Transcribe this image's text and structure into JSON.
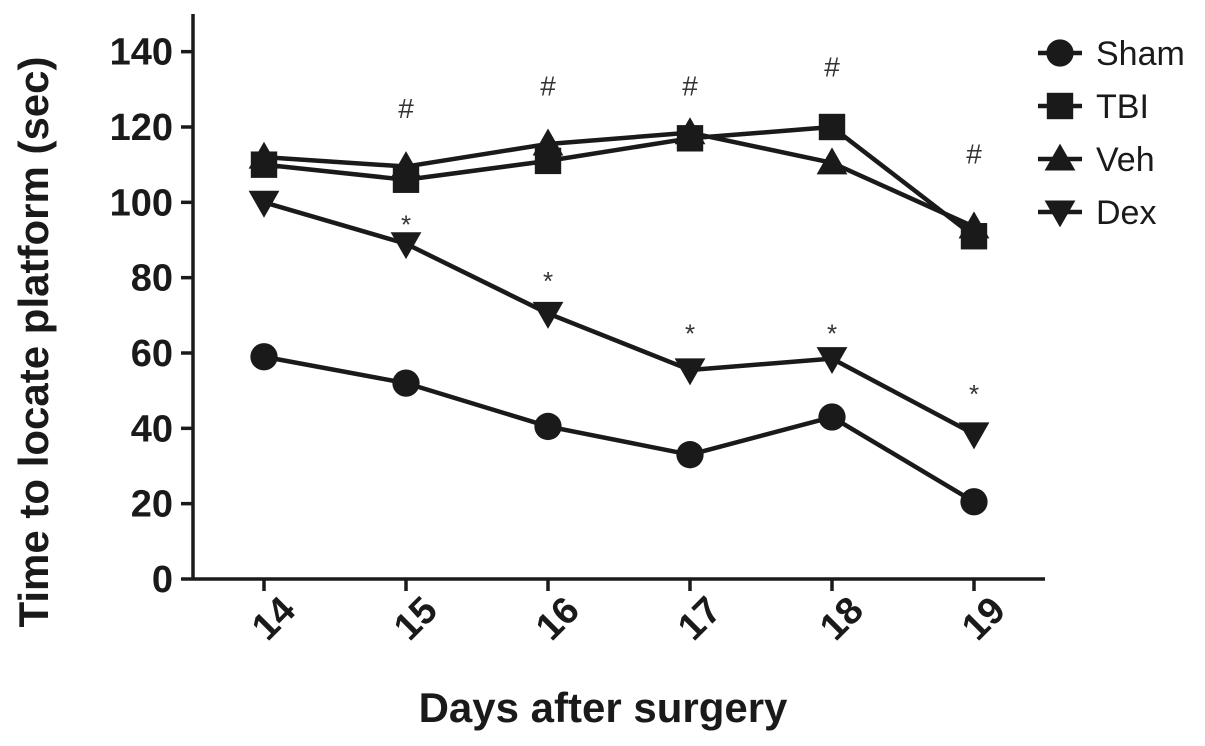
{
  "chart_data": {
    "type": "line",
    "title": "",
    "xlabel": "Days after surgery",
    "ylabel": "Time to locate platform (sec)",
    "x": [
      14,
      15,
      16,
      17,
      18,
      19
    ],
    "xlim": [
      13.5,
      19.5
    ],
    "ylim": [
      0,
      150
    ],
    "yticks": [
      0,
      20,
      40,
      60,
      80,
      100,
      120,
      140
    ],
    "grid": false,
    "legend_position": "top-right",
    "series": [
      {
        "name": "Sham",
        "marker": "circle",
        "color": "#1a1a1a",
        "values": [
          59,
          52,
          40.5,
          33,
          43,
          20.5
        ]
      },
      {
        "name": "TBI",
        "marker": "square",
        "color": "#1a1a1a",
        "values": [
          110,
          106,
          111,
          117,
          120,
          91
        ]
      },
      {
        "name": "Veh",
        "marker": "triangle-up",
        "color": "#1a1a1a",
        "values": [
          112,
          109.5,
          115.5,
          118.5,
          110.5,
          93.5
        ]
      },
      {
        "name": "Dex",
        "marker": "triangle-down",
        "color": "#1a1a1a",
        "values": [
          100,
          89,
          70.5,
          55.5,
          58.5,
          38.5
        ]
      }
    ],
    "annotations": [
      {
        "text": "#",
        "x": 15,
        "y": 125
      },
      {
        "text": "#",
        "x": 16,
        "y": 131
      },
      {
        "text": "#",
        "x": 17,
        "y": 131
      },
      {
        "text": "#",
        "x": 18,
        "y": 136
      },
      {
        "text": "#",
        "x": 19,
        "y": 113
      },
      {
        "text": "*",
        "x": 15,
        "y": 96
      },
      {
        "text": "*",
        "x": 16,
        "y": 81
      },
      {
        "text": "*",
        "x": 17,
        "y": 67
      },
      {
        "text": "*",
        "x": 18,
        "y": 67
      },
      {
        "text": "*",
        "x": 19,
        "y": 51
      }
    ]
  }
}
